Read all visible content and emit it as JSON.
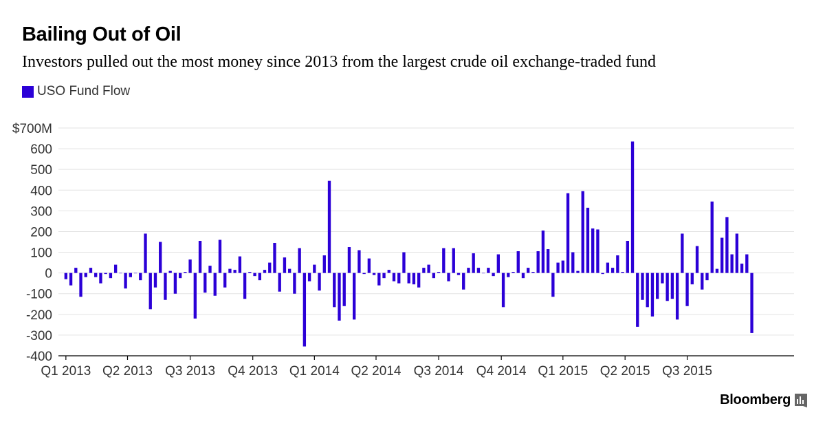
{
  "chart_data": {
    "type": "bar",
    "title": "Bailing Out of Oil",
    "subtitle": "Investors pulled out the most money since 2013 from the largest crude oil exchange-traded fund",
    "series": [
      {
        "name": "USO Fund Flow",
        "color": "#2B00D7",
        "values": [
          -30,
          -60,
          25,
          -115,
          -20,
          25,
          -20,
          -50,
          -5,
          -25,
          40,
          0,
          -75,
          -20,
          0,
          -35,
          190,
          -175,
          -70,
          150,
          -130,
          10,
          -100,
          -25,
          5,
          65,
          -220,
          155,
          -95,
          35,
          -110,
          160,
          -70,
          20,
          15,
          80,
          -125,
          5,
          -15,
          -35,
          15,
          50,
          145,
          -90,
          75,
          20,
          -100,
          120,
          -355,
          -40,
          40,
          -85,
          85,
          445,
          -165,
          -230,
          -160,
          125,
          -225,
          110,
          -5,
          70,
          -10,
          -60,
          -25,
          15,
          -40,
          -50,
          100,
          -50,
          -55,
          -70,
          25,
          40,
          -25,
          5,
          120,
          -40,
          120,
          -10,
          -80,
          25,
          95,
          25,
          0,
          25,
          -15,
          90,
          -165,
          -20,
          5,
          105,
          -25,
          25,
          5,
          105,
          205,
          115,
          -115,
          50,
          60,
          385,
          100,
          10,
          395,
          315,
          215,
          210,
          -5,
          50,
          25,
          85,
          5,
          155,
          635,
          -260,
          -130,
          -165,
          -210,
          -125,
          -50,
          -135,
          -125,
          -225,
          190,
          -160,
          -55,
          130,
          -80,
          -35,
          345,
          20,
          170,
          270,
          90,
          190,
          45,
          90,
          -290
        ]
      }
    ],
    "x_tick_labels": [
      "Q1 2013",
      "Q2 2013",
      "Q3 2013",
      "Q4 2013",
      "Q1 2014",
      "Q2 2014",
      "Q3 2014",
      "Q4 2014",
      "Q1 2015",
      "Q2 2015",
      "Q3 2015"
    ],
    "x_tick_positions": [
      0,
      12.4,
      25,
      37.6,
      50,
      62.4,
      75,
      87.6,
      100,
      112.5,
      125
    ],
    "x_range": [
      -1.5,
      146.5
    ],
    "y_ticks": [
      -400,
      -300,
      -200,
      -100,
      0,
      100,
      200,
      300,
      400,
      500,
      600,
      700
    ],
    "y_tick_labels": [
      "-400",
      "-300",
      "-200",
      "-100",
      "0",
      "100",
      "200",
      "300",
      "400",
      "500",
      "600",
      "$700M"
    ],
    "ylim": [
      -400,
      700
    ],
    "grid": true,
    "legend_position": "top-left"
  },
  "footer": {
    "brand": "Bloomberg"
  },
  "colors": {
    "bar": "#2B00D7",
    "grid": "#e3e3e3",
    "axis": "#000000",
    "tick_text": "#333333"
  }
}
